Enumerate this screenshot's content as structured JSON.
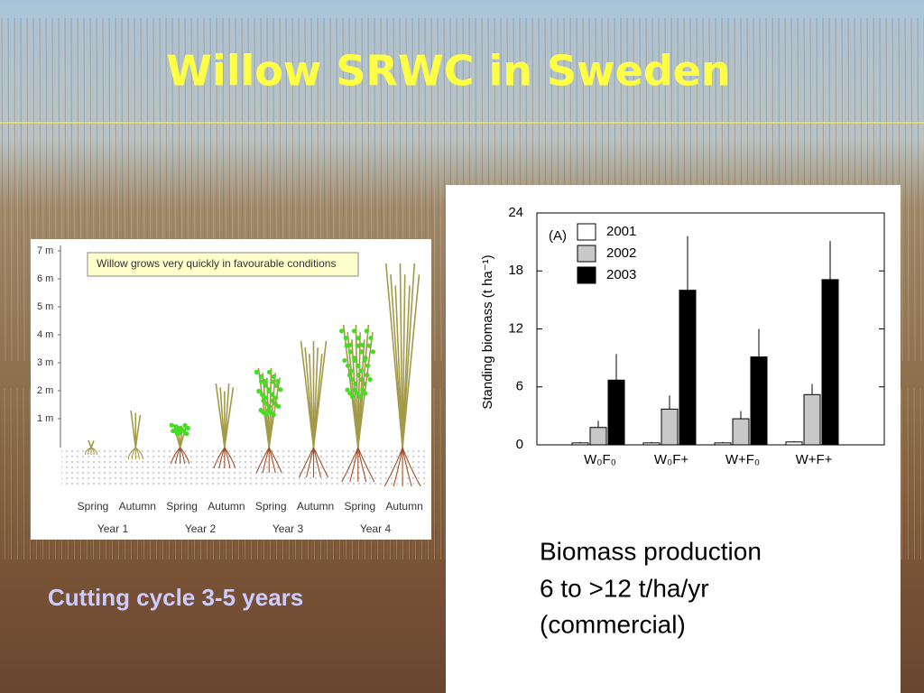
{
  "title": "Willow SRWC in Sweden",
  "diagram": {
    "axis_labels": [
      "1 m",
      "2 m",
      "3 m",
      "4 m",
      "5 m",
      "6 m",
      "7 m"
    ],
    "note": "Willow grows very quickly in favourable conditions",
    "seasons": [
      "Spring",
      "Autumn",
      "Spring",
      "Autumn",
      "Spring",
      "Autumn",
      "Spring",
      "Autumn"
    ],
    "years": [
      "Year 1",
      "Year 2",
      "Year 3",
      "Year 4"
    ]
  },
  "chart_data": {
    "type": "bar",
    "annotation": "(A)",
    "y_label": "Standing biomass (t ha⁻¹)",
    "categories": [
      "W₀F₀",
      "W₀F+",
      "W+F₀",
      "W+F+"
    ],
    "series": [
      {
        "name": "2001",
        "color": "#ffffff",
        "values": [
          0.2,
          0.2,
          0.2,
          0.3
        ],
        "errors": [
          0.1,
          0.1,
          0.1,
          0.1
        ]
      },
      {
        "name": "2002",
        "color": "#c8c8c8",
        "values": [
          1.8,
          3.7,
          2.7,
          5.2
        ],
        "errors": [
          0.7,
          1.4,
          0.8,
          1.1
        ]
      },
      {
        "name": "2003",
        "color": "#000000",
        "values": [
          6.7,
          16.0,
          9.1,
          17.1
        ],
        "errors": [
          2.7,
          5.6,
          2.9,
          4.0
        ]
      }
    ],
    "ylim": [
      0,
      24
    ],
    "yticks": [
      0,
      6,
      12,
      18,
      24
    ]
  },
  "caption": {
    "left": "Cutting cycle 3-5 years",
    "right": [
      "Biomass production",
      "6 to >12 t/ha/yr",
      "(commercial)"
    ]
  }
}
